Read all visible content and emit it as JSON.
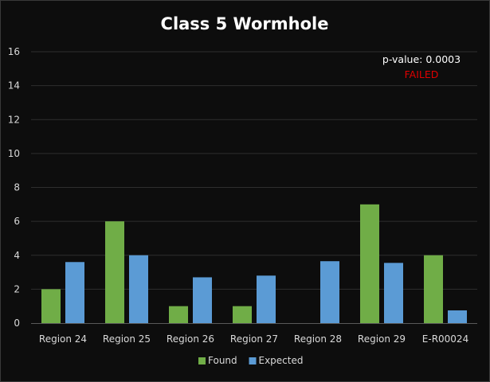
{
  "chart_data": {
    "type": "bar",
    "title": "Class 5 Wormhole",
    "categories": [
      "Region 24",
      "Region 25",
      "Region 26",
      "Region 27",
      "Region 28",
      "Region 29",
      "E-R00024"
    ],
    "series": [
      {
        "name": "Found",
        "values": [
          2,
          6,
          1,
          1,
          0,
          7,
          4
        ],
        "color": "#70ad47"
      },
      {
        "name": "Expected",
        "values": [
          3.6,
          4.0,
          2.7,
          2.8,
          3.65,
          3.55,
          0.75
        ],
        "color": "#5b9bd5"
      }
    ],
    "ylim": [
      0,
      16
    ],
    "yticks": [
      0,
      2,
      4,
      6,
      8,
      10,
      12,
      14,
      16
    ],
    "grid": true,
    "legend": "bottom",
    "annotation": {
      "pvalue_text": "p-value: 0.0003",
      "status_text": "FAILED",
      "status_color": "#e00000"
    }
  }
}
